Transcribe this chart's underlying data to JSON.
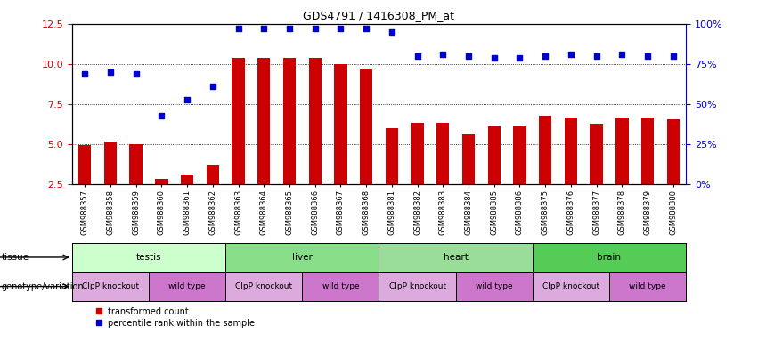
{
  "title": "GDS4791 / 1416308_PM_at",
  "samples": [
    "GSM988357",
    "GSM988358",
    "GSM988359",
    "GSM988360",
    "GSM988361",
    "GSM988362",
    "GSM988363",
    "GSM988364",
    "GSM988365",
    "GSM988366",
    "GSM988367",
    "GSM988368",
    "GSM988381",
    "GSM988382",
    "GSM988383",
    "GSM988384",
    "GSM988385",
    "GSM988386",
    "GSM988375",
    "GSM988376",
    "GSM988377",
    "GSM988378",
    "GSM988379",
    "GSM988380"
  ],
  "bar_values": [
    4.97,
    5.18,
    5.03,
    2.85,
    3.12,
    3.75,
    10.38,
    10.38,
    10.38,
    10.38,
    10.0,
    9.7,
    6.0,
    6.35,
    6.32,
    5.65,
    6.1,
    6.2,
    6.8,
    6.65,
    6.3,
    6.7,
    6.65,
    6.55
  ],
  "dot_values": [
    9.4,
    9.5,
    9.4,
    6.8,
    7.8,
    8.6,
    12.2,
    12.2,
    12.2,
    12.2,
    12.2,
    12.2,
    12.0,
    10.5,
    10.6,
    10.5,
    10.4,
    10.4,
    10.5,
    10.6,
    10.5,
    10.6,
    10.5,
    10.5
  ],
  "ylim_left": [
    2.5,
    12.5
  ],
  "ylim_right": [
    0,
    100
  ],
  "yticks_left": [
    2.5,
    5.0,
    7.5,
    10.0,
    12.5
  ],
  "yticks_right": [
    0,
    25,
    50,
    75,
    100
  ],
  "bar_color": "#cc0000",
  "dot_color": "#0000cc",
  "tissue_row": [
    {
      "label": "testis",
      "start": 0,
      "end": 5,
      "color": "#ccffcc"
    },
    {
      "label": "liver",
      "start": 6,
      "end": 11,
      "color": "#88dd88"
    },
    {
      "label": "heart",
      "start": 12,
      "end": 17,
      "color": "#99dd99"
    },
    {
      "label": "brain",
      "start": 18,
      "end": 23,
      "color": "#55cc55"
    }
  ],
  "genotype_row": [
    {
      "label": "ClpP knockout",
      "start": 0,
      "end": 2,
      "color": "#ddaadd"
    },
    {
      "label": "wild type",
      "start": 3,
      "end": 5,
      "color": "#cc77cc"
    },
    {
      "label": "ClpP knockout",
      "start": 6,
      "end": 8,
      "color": "#ddaadd"
    },
    {
      "label": "wild type",
      "start": 9,
      "end": 11,
      "color": "#cc77cc"
    },
    {
      "label": "ClpP knockout",
      "start": 12,
      "end": 14,
      "color": "#ddaadd"
    },
    {
      "label": "wild type",
      "start": 15,
      "end": 17,
      "color": "#cc77cc"
    },
    {
      "label": "ClpP knockout",
      "start": 18,
      "end": 20,
      "color": "#ddaadd"
    },
    {
      "label": "wild type",
      "start": 21,
      "end": 23,
      "color": "#cc77cc"
    }
  ],
  "legend_labels": [
    "transformed count",
    "percentile rank within the sample"
  ],
  "legend_colors": [
    "#cc0000",
    "#0000cc"
  ]
}
